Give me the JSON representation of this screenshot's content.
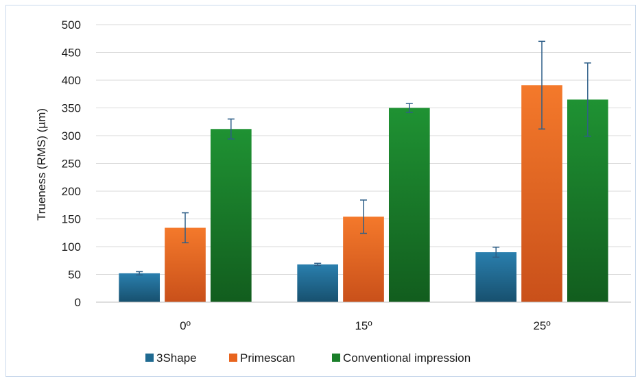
{
  "chart_data": {
    "type": "bar",
    "title": "",
    "xlabel": "",
    "ylabel": "Trueness (RMS) (µm)",
    "categories": [
      "0º",
      "15º",
      "25º"
    ],
    "ylim": [
      0,
      500
    ],
    "yticks": [
      0,
      50,
      100,
      150,
      200,
      250,
      300,
      350,
      400,
      450,
      500
    ],
    "grid": true,
    "legend_position": "bottom",
    "series": [
      {
        "name": "3Shape",
        "color": "#1f6a91",
        "values": [
          52,
          68,
          90
        ],
        "errors": [
          3,
          2,
          9
        ]
      },
      {
        "name": "Primescan",
        "color": "#e8641e",
        "values": [
          134,
          154,
          391
        ],
        "errors": [
          27,
          30,
          79
        ]
      },
      {
        "name": "Conventional impression",
        "color": "#1a7f2a",
        "values": [
          312,
          350,
          365
        ],
        "errors": [
          18,
          8,
          66
        ]
      }
    ]
  }
}
